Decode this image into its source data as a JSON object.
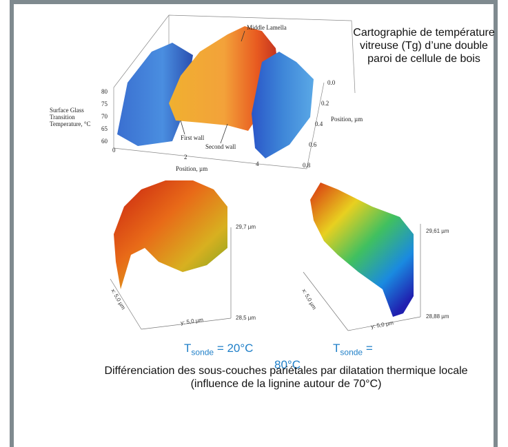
{
  "top_figure": {
    "label_top": "Middle Lamella",
    "z_axis_title": [
      "Surface Glass",
      "Transition",
      "Temperature, °C"
    ],
    "z_ticks": [
      "80",
      "75",
      "70",
      "65",
      "60"
    ],
    "x_ticks": [
      "0",
      "2",
      "4"
    ],
    "x_axis_title": "Position, µm",
    "y_ticks": [
      "0.0",
      "0.2",
      "0.4",
      "0.6",
      "0.8"
    ],
    "y_axis_title": "Position, µm",
    "label_first": "First wall",
    "label_second": "Second wall"
  },
  "caption_top": "Cartographie de température vitreuse (Tg) d’une double paroi de cellule de bois",
  "afm_left": {
    "z_max": "29,7 µm",
    "z_min": "28,5 µm",
    "x_label": "x: 5,0 µm",
    "y_label": "y: 5,0 µm",
    "probe": {
      "t": "T",
      "sub": "sonde",
      "rest": "= 20°C"
    }
  },
  "afm_right": {
    "z_max": "29,61 µm",
    "z_min": "28,88 µm",
    "x_label": "x: 5,0 µm",
    "y_label": "y: 5,0 µm",
    "probe": {
      "t": "T",
      "sub": "sonde",
      "eq": "=",
      "value": "80°C"
    }
  },
  "caption_bottom": "Différenciation des sous-couches pariétales par dilatation thermique locale (influence de la lignine autour de 70°C)"
}
